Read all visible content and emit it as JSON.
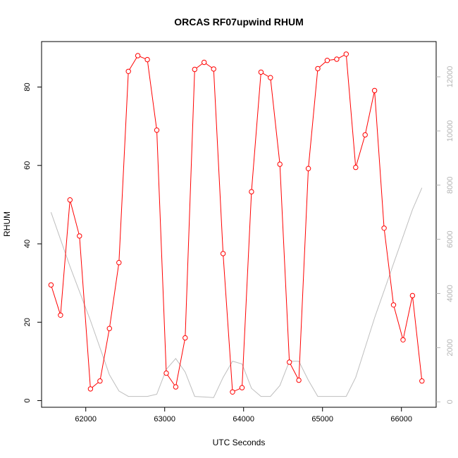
{
  "chart_data": {
    "type": "line",
    "title": "ORCAS RF07upwind RHUM",
    "xlabel": "UTC Seconds",
    "ylabel": "RHUM",
    "xlim": [
      61440,
      66440
    ],
    "ylim": [
      -1.7,
      91.6
    ],
    "y2lim": [
      -200,
      13300
    ],
    "x_ticks": [
      62000,
      63000,
      64000,
      65000,
      66000
    ],
    "y_ticks": [
      0,
      20,
      40,
      60,
      80
    ],
    "y2_ticks": [
      0,
      2000,
      4000,
      6000,
      8000,
      10000,
      12000
    ],
    "grid": false,
    "series": [
      {
        "color": "#ff0000",
        "axis": "left",
        "markers": "open-circle",
        "x": [
          61560,
          61680,
          61800,
          61920,
          62060,
          62180,
          62300,
          62420,
          62540,
          62660,
          62780,
          62900,
          63020,
          63140,
          63260,
          63380,
          63500,
          63620,
          63740,
          63860,
          63980,
          64100,
          64220,
          64340,
          64460,
          64580,
          64700,
          64820,
          64940,
          65060,
          65180,
          65300,
          65420,
          65540,
          65660,
          65780,
          65900,
          66020,
          66140,
          66260
        ],
        "y": [
          29.5,
          21.8,
          51.2,
          42.0,
          3.0,
          5.0,
          18.4,
          35.2,
          84.0,
          88.0,
          87.0,
          69.0,
          7.0,
          3.5,
          16.0,
          84.5,
          86.3,
          84.6,
          37.5,
          2.2,
          3.3,
          53.3,
          83.8,
          82.4,
          60.3,
          9.8,
          5.2,
          59.2,
          84.7,
          86.8,
          87.1,
          88.4,
          59.5,
          67.8,
          79.1,
          44.0,
          24.4,
          15.5,
          26.8,
          5.0
        ]
      },
      {
        "color": "#bebebe",
        "axis": "right",
        "markers": "none",
        "x": [
          61560,
          61800,
          62060,
          62300,
          62420,
          62540,
          62660,
          62780,
          62900,
          63020,
          63140,
          63260,
          63380,
          63500,
          63620,
          63740,
          63860,
          63980,
          64100,
          64220,
          64340,
          64460,
          64580,
          64700,
          64820,
          64940,
          65060,
          65180,
          65300,
          65420,
          65540,
          65660,
          65780,
          65900,
          66020,
          66140,
          66260
        ],
        "y": [
          7000,
          5000,
          3000,
          1000,
          400,
          200,
          200,
          200,
          280,
          1200,
          1600,
          1100,
          200,
          180,
          160,
          900,
          1500,
          1400,
          500,
          200,
          200,
          600,
          1500,
          1500,
          800,
          200,
          200,
          200,
          200,
          900,
          2000,
          3100,
          4100,
          5100,
          6100,
          7100,
          7900
        ]
      }
    ]
  }
}
